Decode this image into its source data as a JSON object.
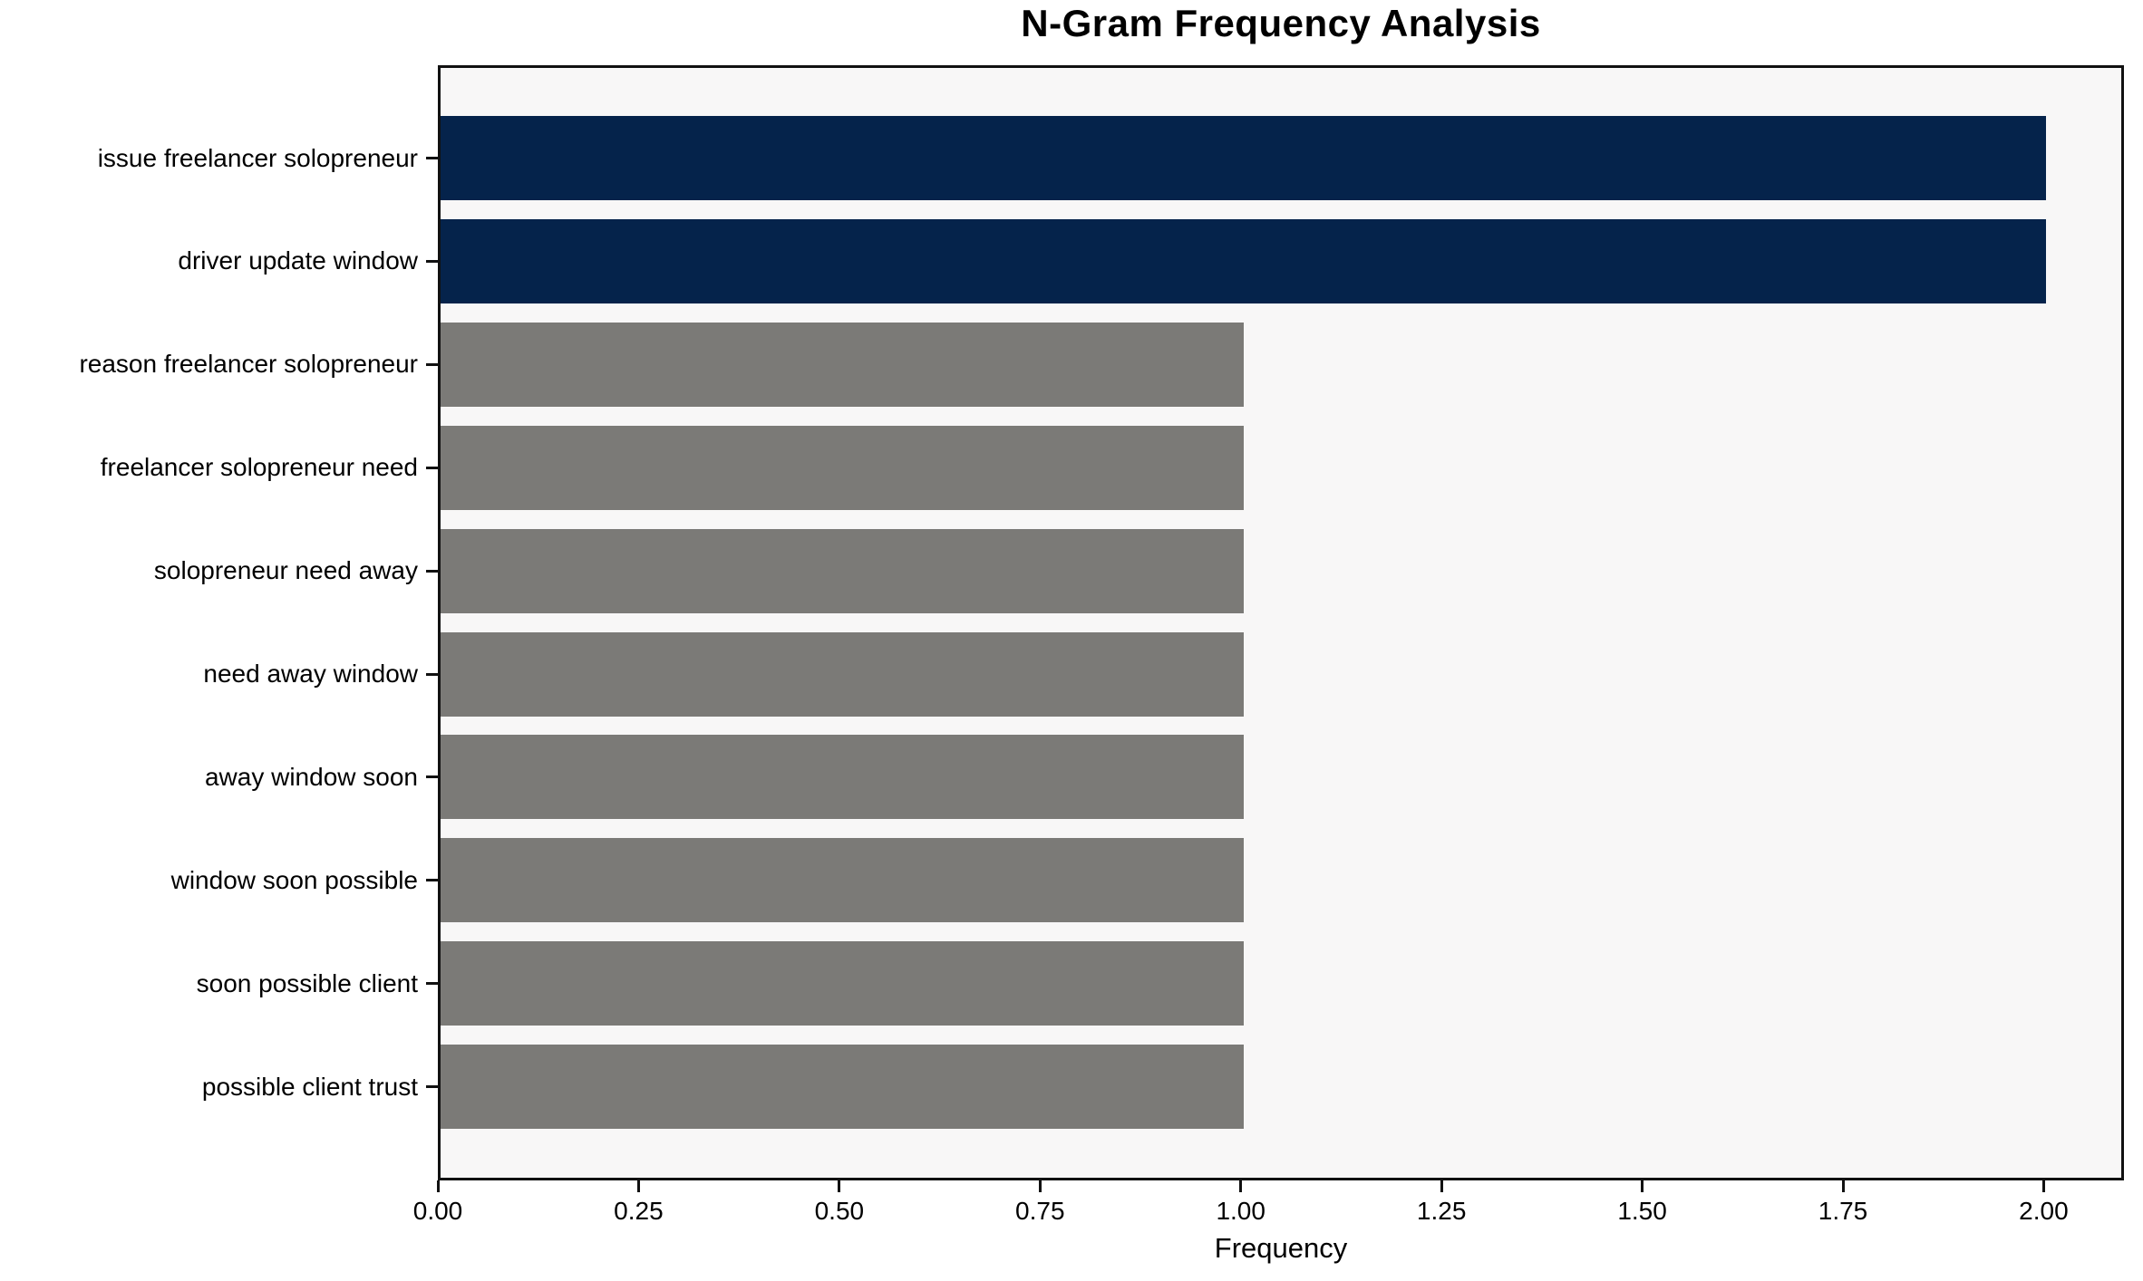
{
  "chart_data": {
    "type": "bar",
    "orientation": "horizontal",
    "title": "N-Gram Frequency Analysis",
    "xlabel": "Frequency",
    "ylabel": "",
    "categories": [
      "issue freelancer solopreneur",
      "driver update window",
      "reason freelancer solopreneur",
      "freelancer solopreneur need",
      "solopreneur need away",
      "need away window",
      "away window soon",
      "window soon possible",
      "soon possible client",
      "possible client trust"
    ],
    "values": [
      2,
      2,
      1,
      1,
      1,
      1,
      1,
      1,
      1,
      1
    ],
    "bar_colors": [
      "#05234b",
      "#05234b",
      "#7b7a77",
      "#7b7a77",
      "#7b7a77",
      "#7b7a77",
      "#7b7a77",
      "#7b7a77",
      "#7b7a77",
      "#7b7a77"
    ],
    "highlight_color": "#05234b",
    "normal_color": "#7b7a77",
    "plot_background": "#f8f7f7",
    "axis_color": "#111111",
    "xlim": [
      0,
      2.1
    ],
    "xticks": [
      {
        "value": 0.0,
        "label": "0.00"
      },
      {
        "value": 0.25,
        "label": "0.25"
      },
      {
        "value": 0.5,
        "label": "0.50"
      },
      {
        "value": 0.75,
        "label": "0.75"
      },
      {
        "value": 1.0,
        "label": "1.00"
      },
      {
        "value": 1.25,
        "label": "1.25"
      },
      {
        "value": 1.5,
        "label": "1.50"
      },
      {
        "value": 1.75,
        "label": "1.75"
      },
      {
        "value": 2.0,
        "label": "2.00"
      }
    ],
    "grid": false,
    "legend": null
  }
}
